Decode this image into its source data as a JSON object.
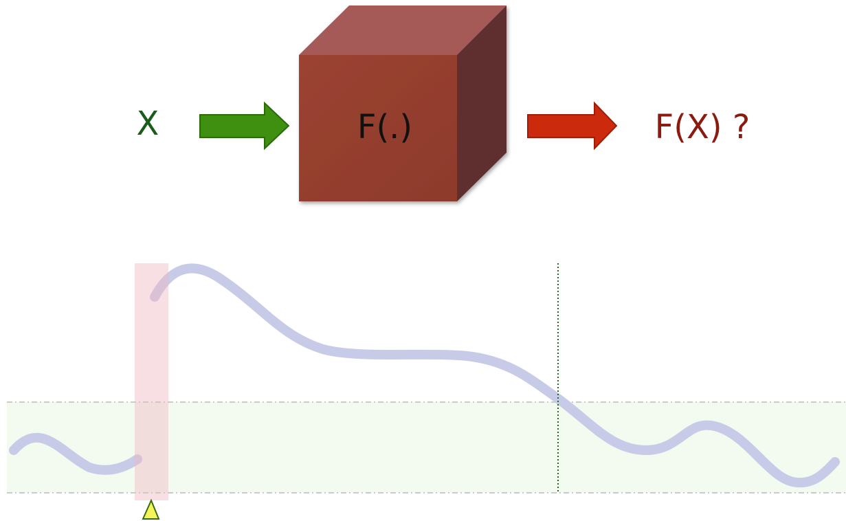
{
  "labels": {
    "input": "X",
    "function": "F(.)",
    "output": "F(X) ?"
  }
}
